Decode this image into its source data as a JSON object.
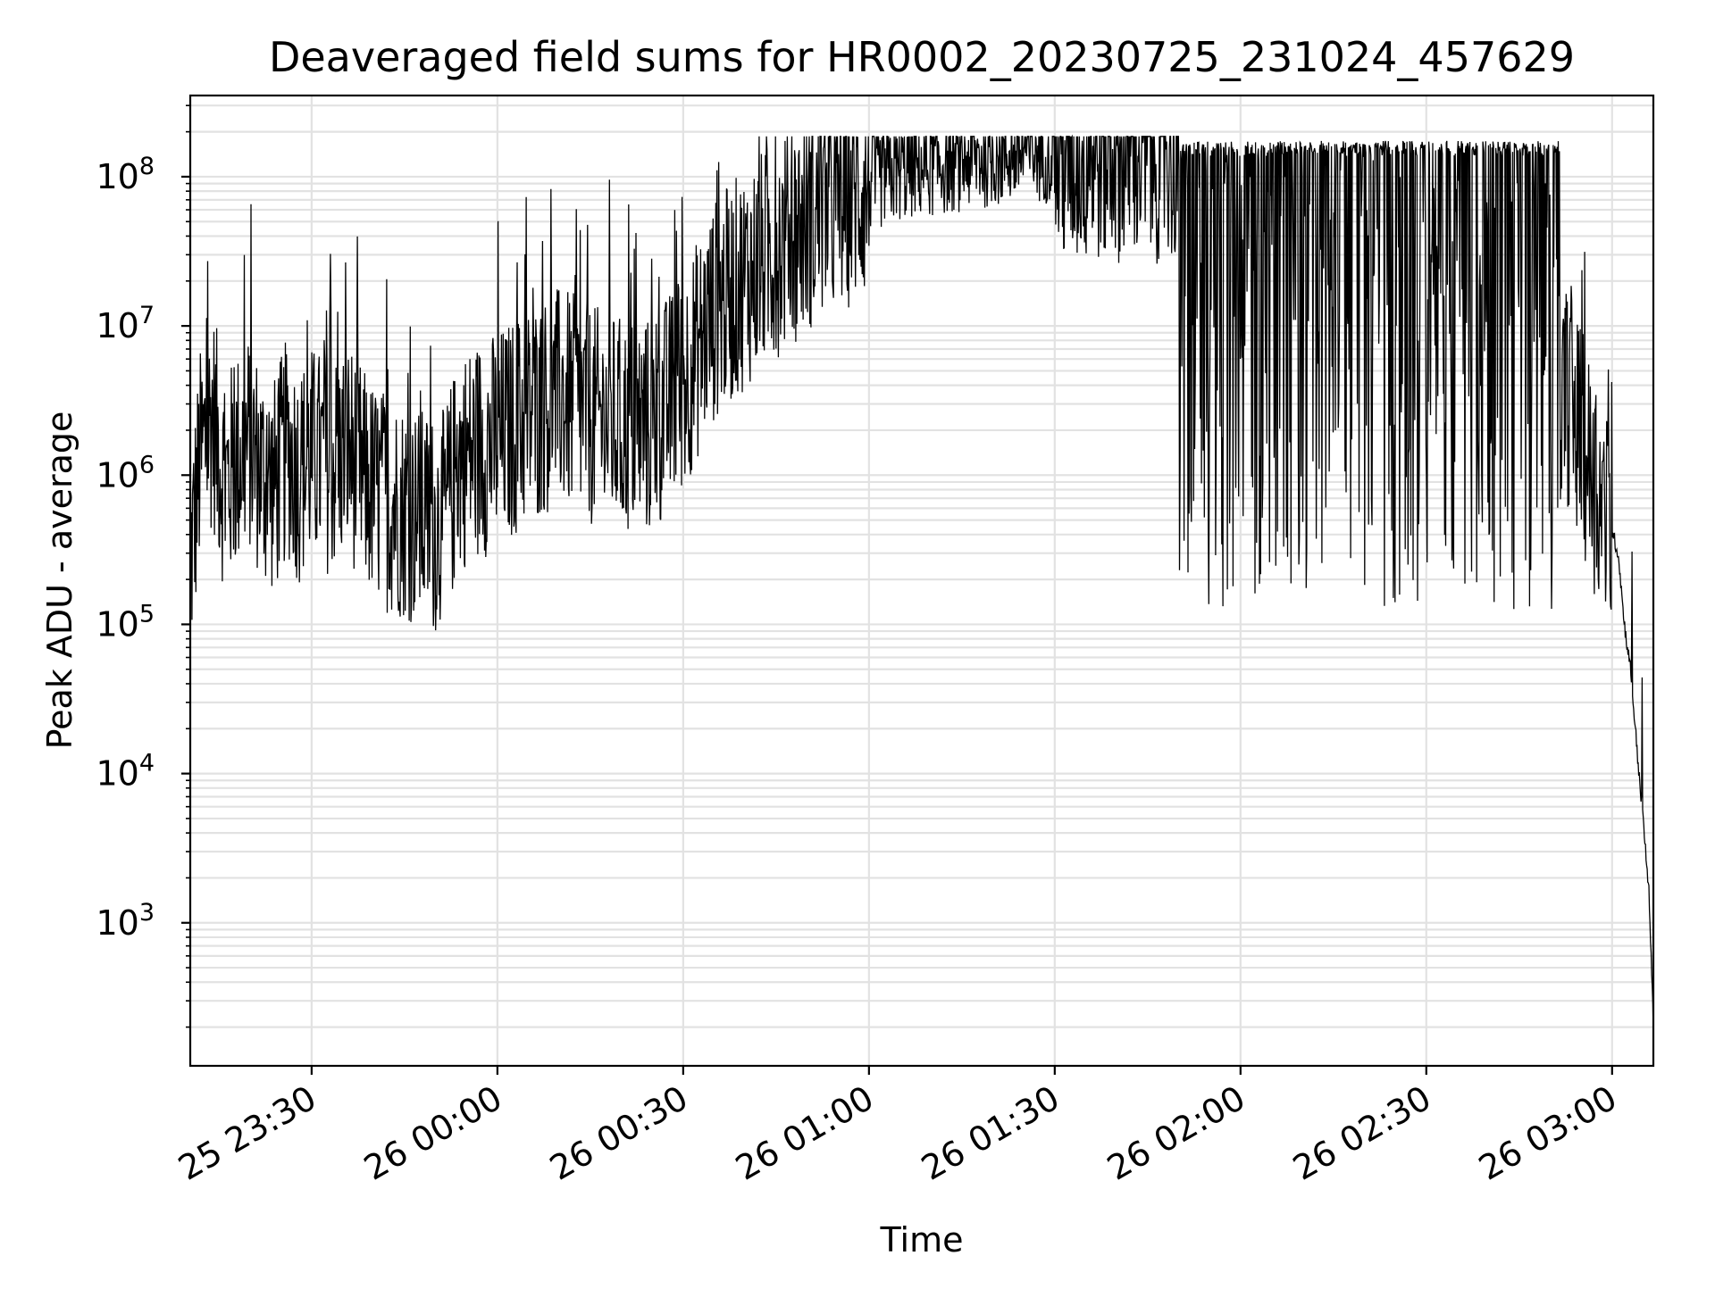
{
  "chart_data": {
    "type": "line",
    "title": "Deaveraged field sums for HR0002_20230725_231024_457629",
    "xlabel": "Time",
    "ylabel": "Peak ADU - average",
    "yscale": "log",
    "ylim": [
      110,
      350000000.0
    ],
    "xlim": [
      "2023-07-25 23:10:24",
      "2023-07-26 03:06:40"
    ],
    "x_tick_labels": [
      "25 23:30",
      "26 00:00",
      "26 00:30",
      "26 01:00",
      "26 01:30",
      "26 02:00",
      "26 02:30",
      "26 03:00"
    ],
    "x_tick_times": [
      "2023-07-25 23:30:00",
      "2023-07-26 00:00:00",
      "2023-07-26 00:30:00",
      "2023-07-26 01:00:00",
      "2023-07-26 01:30:00",
      "2023-07-26 02:00:00",
      "2023-07-26 02:30:00",
      "2023-07-26 03:00:00"
    ],
    "y_tick_labels": [
      {
        "base": "10",
        "exp": "3",
        "value": 1000
      },
      {
        "base": "10",
        "exp": "4",
        "value": 10000
      },
      {
        "base": "10",
        "exp": "5",
        "value": 100000
      },
      {
        "base": "10",
        "exp": "6",
        "value": 1000000
      },
      {
        "base": "10",
        "exp": "7",
        "value": 10000000
      },
      {
        "base": "10",
        "exp": "8",
        "value": 100000000
      }
    ],
    "grid": "both",
    "series": [
      {
        "color": "#000000",
        "x": [
          "2023-07-25 23:10:24",
          "2023-07-25 23:12:00",
          "2023-07-25 23:14:00",
          "2023-07-25 23:16:00",
          "2023-07-25 23:18:00",
          "2023-07-25 23:20:00",
          "2023-07-25 23:22:00",
          "2023-07-25 23:24:00",
          "2023-07-25 23:26:00",
          "2023-07-25 23:28:00",
          "2023-07-25 23:30:00",
          "2023-07-25 23:33:00",
          "2023-07-25 23:36:00",
          "2023-07-25 23:39:00",
          "2023-07-25 23:42:00",
          "2023-07-25 23:45:00",
          "2023-07-25 23:48:00",
          "2023-07-25 23:51:00",
          "2023-07-25 23:54:00",
          "2023-07-25 23:57:00",
          "2023-07-26 00:00:00",
          "2023-07-26 00:05:00",
          "2023-07-26 00:10:00",
          "2023-07-26 00:15:00",
          "2023-07-26 00:20:00",
          "2023-07-26 00:25:00",
          "2023-07-26 00:30:00",
          "2023-07-26 00:35:00",
          "2023-07-26 00:40:00",
          "2023-07-26 00:45:00",
          "2023-07-26 00:50:00",
          "2023-07-26 00:55:00",
          "2023-07-26 01:00:00",
          "2023-07-26 01:05:00",
          "2023-07-26 01:10:00",
          "2023-07-26 01:15:00",
          "2023-07-26 01:20:00",
          "2023-07-26 01:25:00",
          "2023-07-26 01:30:00",
          "2023-07-26 01:35:00",
          "2023-07-26 01:40:00",
          "2023-07-26 01:45:00",
          "2023-07-26 01:50:00",
          "2023-07-26 01:55:00",
          "2023-07-26 02:00:00",
          "2023-07-26 02:05:00",
          "2023-07-26 02:10:00",
          "2023-07-26 02:15:00",
          "2023-07-26 02:20:00",
          "2023-07-26 02:25:00",
          "2023-07-26 02:30:00",
          "2023-07-26 02:35:00",
          "2023-07-26 02:40:00",
          "2023-07-26 02:45:00",
          "2023-07-26 02:50:00",
          "2023-07-26 02:53:00",
          "2023-07-26 02:56:00",
          "2023-07-26 02:59:00",
          "2023-07-26 03:01:00",
          "2023-07-26 03:02:00",
          "2023-07-26 03:03:00",
          "2023-07-26 03:04:00",
          "2023-07-26 03:05:00",
          "2023-07-26 03:06:00",
          "2023-07-26 03:06:40"
        ],
        "y": [
          300000.0,
          1500000.0,
          3000000.0,
          1000000.0,
          1500000.0,
          2000000.0,
          1200000.0,
          1000000.0,
          1800000.0,
          1200000.0,
          1600000.0,
          1400000.0,
          1800000.0,
          1000000.0,
          800000.0,
          700000.0,
          600000.0,
          550000.0,
          1500000.0,
          1800000.0,
          2000000.0,
          3000000.0,
          4000000.0,
          3000000.0,
          2500000.0,
          2500000.0,
          5000000.0,
          15000000.0,
          25000000.0,
          40000000.0,
          60000000.0,
          80000000.0,
          100000000.0,
          120000000.0,
          130000000.0,
          140000000.0,
          150000000.0,
          160000000.0,
          160000000.0,
          170000000.0,
          175000000.0,
          175000000.0,
          170000000.0,
          170000000.0,
          170000000.0,
          170000000.0,
          170000000.0,
          170000000.0,
          160000000.0,
          150000000.0,
          140000000.0,
          120000000.0,
          120000000.0,
          100000000.0,
          5000000.0,
          4000000.0,
          1500000.0,
          600000.0,
          300000.0,
          100000.0,
          50000.0,
          15000.0,
          5000.0,
          1500.0,
          200.0
        ]
      }
    ]
  }
}
